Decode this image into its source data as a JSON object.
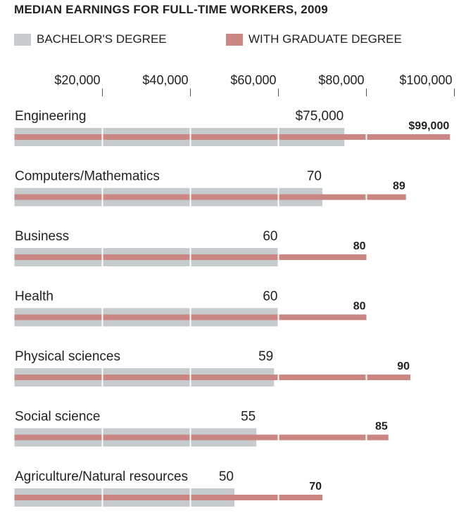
{
  "chart_data": {
    "type": "bar",
    "title": "MEDIAN EARNINGS FOR FULL-TIME WORKERS, 2009",
    "xlim": [
      0,
      100000
    ],
    "ticks": [
      {
        "value": 20000,
        "label": "$20,000"
      },
      {
        "value": 40000,
        "label": "$40,000"
      },
      {
        "value": 60000,
        "label": "$60,000"
      },
      {
        "value": 80000,
        "label": "$80,000"
      },
      {
        "value": 100000,
        "label": "$100,000"
      }
    ],
    "series": [
      {
        "name": "BACHELOR'S DEGREE",
        "color": "#c6cbce"
      },
      {
        "name": "WITH GRADUATE DEGREE",
        "color": "#c98682"
      }
    ],
    "categories": [
      {
        "name": "Engineering",
        "bachelor": 75000,
        "graduate": 99000,
        "bachelor_label": "$75,000",
        "graduate_label": "$99,000"
      },
      {
        "name": "Computers/Mathematics",
        "bachelor": 70000,
        "graduate": 89000,
        "bachelor_label": "70",
        "graduate_label": "89"
      },
      {
        "name": "Business",
        "bachelor": 60000,
        "graduate": 80000,
        "bachelor_label": "60",
        "graduate_label": "80"
      },
      {
        "name": "Health",
        "bachelor": 60000,
        "graduate": 80000,
        "bachelor_label": "60",
        "graduate_label": "80"
      },
      {
        "name": "Physical sciences",
        "bachelor": 59000,
        "graduate": 90000,
        "bachelor_label": "59",
        "graduate_label": "90"
      },
      {
        "name": "Social science",
        "bachelor": 55000,
        "graduate": 85000,
        "bachelor_label": "55",
        "graduate_label": "85"
      },
      {
        "name": "Agriculture/Natural resources",
        "bachelor": 50000,
        "graduate": 70000,
        "bachelor_label": "50",
        "graduate_label": "70"
      }
    ]
  }
}
